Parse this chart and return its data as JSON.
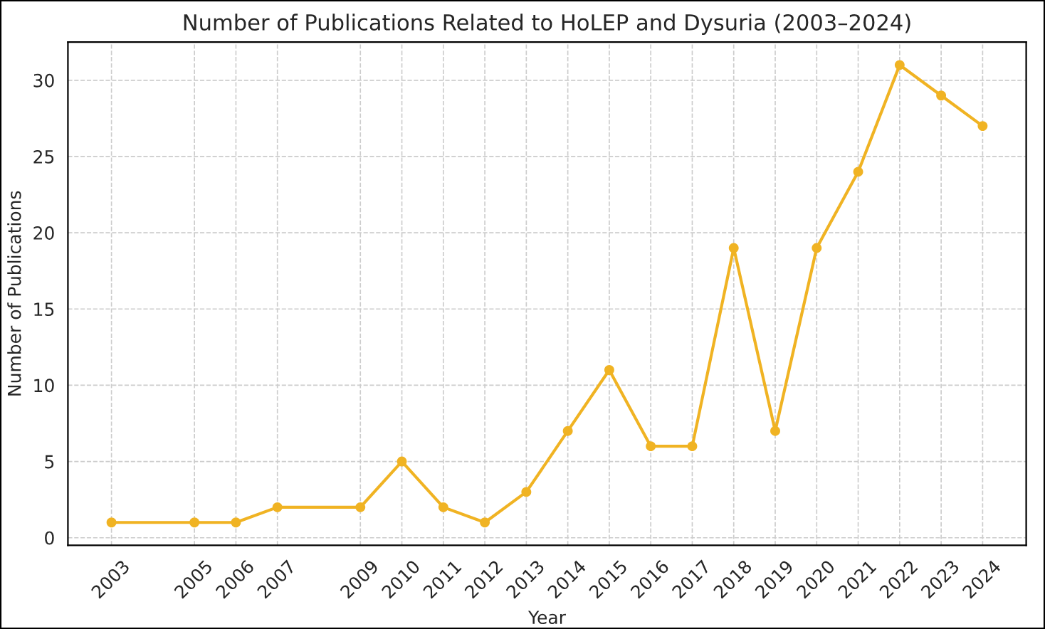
{
  "chart_data": {
    "type": "line",
    "title": "Number of Publications Related to HoLEP and Dysuria (2003–2024)",
    "xlabel": "Year",
    "ylabel": "Number of Publications",
    "x": [
      2003,
      2005,
      2006,
      2007,
      2009,
      2010,
      2011,
      2012,
      2013,
      2014,
      2015,
      2016,
      2017,
      2018,
      2019,
      2020,
      2021,
      2022,
      2023,
      2024
    ],
    "series": [
      {
        "color": "#f0b323",
        "values": [
          1,
          1,
          1,
          2,
          2,
          5,
          2,
          1,
          3,
          7,
          11,
          6,
          6,
          19,
          7,
          19,
          24,
          31,
          29,
          27
        ]
      }
    ],
    "xlim": [
      2001.95,
      2025.05
    ],
    "xticks": [
      2003,
      2005,
      2006,
      2007,
      2009,
      2010,
      2011,
      2012,
      2013,
      2014,
      2015,
      2016,
      2017,
      2018,
      2019,
      2020,
      2021,
      2022,
      2023,
      2024
    ],
    "ylim": [
      -0.5,
      32.5
    ],
    "yticks": [
      0,
      5,
      10,
      15,
      20,
      25,
      30
    ],
    "grid": true,
    "marker": "circle",
    "line_style": "solid"
  }
}
